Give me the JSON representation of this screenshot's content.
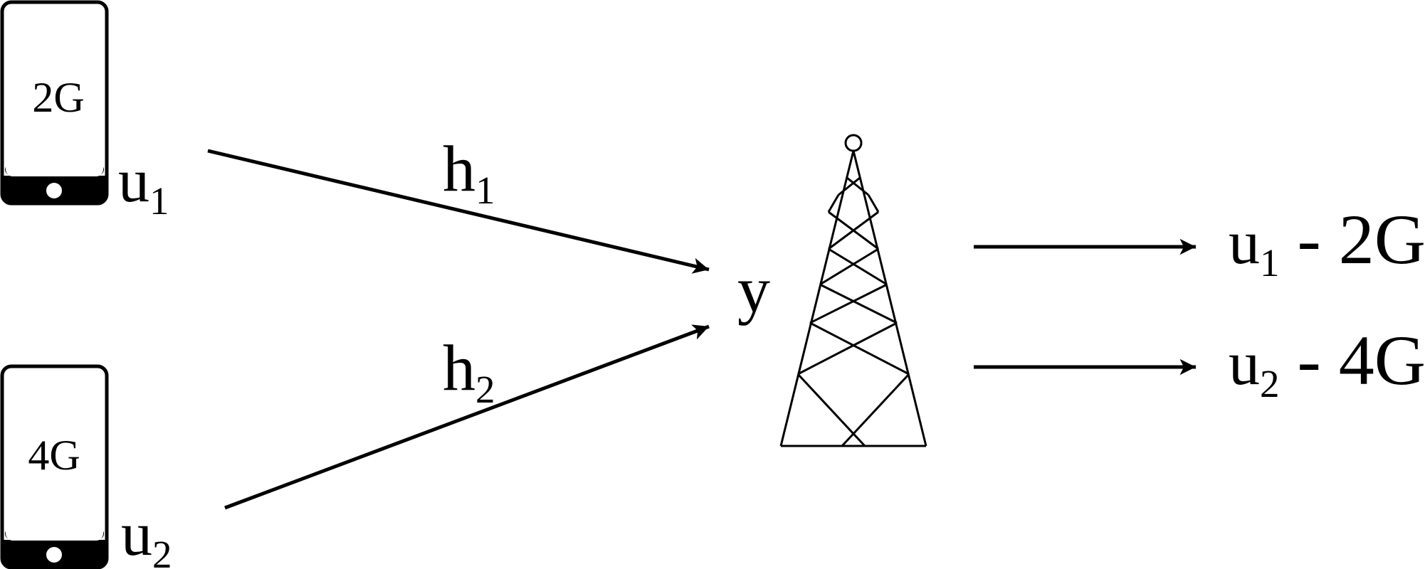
{
  "users": [
    {
      "id": "u1",
      "screen_label": "2G",
      "label": "u",
      "label_sub": "1"
    },
    {
      "id": "u2",
      "screen_label": "4G",
      "label": "u",
      "label_sub": "2"
    }
  ],
  "channels": [
    {
      "label": "h",
      "label_sub": "1"
    },
    {
      "label": "h",
      "label_sub": "2"
    }
  ],
  "received_signal": "y",
  "outputs": [
    {
      "label": "u",
      "label_sub": "1",
      "suffix": " - 2G"
    },
    {
      "label": "u",
      "label_sub": "2",
      "suffix": " - 4G"
    }
  ],
  "colors": {
    "stroke": "#000000",
    "background": "#ffffff"
  }
}
